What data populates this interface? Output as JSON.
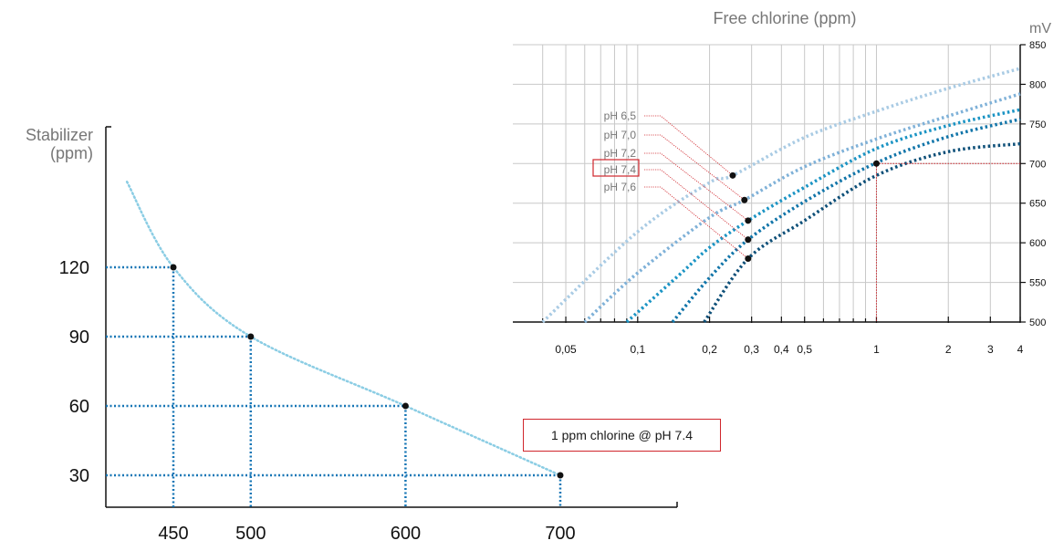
{
  "chart_data": [
    {
      "type": "line",
      "title": "Free chlorine (ppm)",
      "ylabel": "mV",
      "xscale": "log",
      "xlim": [
        0.03,
        4
      ],
      "ylim": [
        500,
        850
      ],
      "grid": true,
      "x_ticks": [
        {
          "value": 0.05,
          "label": "0,05"
        },
        {
          "value": 0.1,
          "label": "0,1"
        },
        {
          "value": 0.2,
          "label": "0,2"
        },
        {
          "value": 0.3,
          "label": "0,3"
        },
        {
          "value": 0.4,
          "label": "0,4"
        },
        {
          "value": 0.5,
          "label": "0,5"
        },
        {
          "value": 1,
          "label": "1"
        },
        {
          "value": 2,
          "label": "2"
        },
        {
          "value": 3,
          "label": "3"
        },
        {
          "value": 4,
          "label": "4"
        }
      ],
      "y_ticks": [
        500,
        550,
        600,
        650,
        700,
        750,
        800,
        850
      ],
      "series": [
        {
          "name": "pH 6,5",
          "color": "#a9cbe4",
          "highlight": false,
          "points": [
            [
              0.04,
              500
            ],
            [
              0.1,
              614
            ],
            [
              0.2,
              676
            ],
            [
              0.25,
              685
            ],
            [
              0.5,
              733
            ],
            [
              1,
              766
            ],
            [
              2,
              795
            ],
            [
              4,
              820
            ]
          ],
          "marker": [
            0.25,
            685
          ]
        },
        {
          "name": "pH 7,0",
          "color": "#7fb1d8",
          "highlight": false,
          "points": [
            [
              0.06,
              500
            ],
            [
              0.1,
              562
            ],
            [
              0.2,
              632
            ],
            [
              0.28,
              654
            ],
            [
              0.5,
              696
            ],
            [
              1,
              731
            ],
            [
              2,
              760
            ],
            [
              4,
              788
            ]
          ],
          "marker": [
            0.28,
            654
          ]
        },
        {
          "name": "pH 7,2",
          "color": "#1b94c4",
          "highlight": false,
          "points": [
            [
              0.09,
              500
            ],
            [
              0.15,
              560
            ],
            [
              0.2,
              594
            ],
            [
              0.29,
              628
            ],
            [
              0.5,
              670
            ],
            [
              1,
              719
            ],
            [
              2,
              748
            ],
            [
              4,
              768
            ]
          ],
          "marker": [
            0.29,
            628
          ]
        },
        {
          "name": "pH 7,4",
          "color": "#1175a9",
          "highlight": true,
          "points": [
            [
              0.14,
              500
            ],
            [
              0.2,
              556
            ],
            [
              0.29,
              604
            ],
            [
              0.5,
              652
            ],
            [
              1,
              701
            ],
            [
              2,
              734
            ],
            [
              4,
              756
            ]
          ],
          "marker": [
            0.29,
            604
          ]
        },
        {
          "name": "pH 7,6",
          "color": "#0d4f78",
          "highlight": false,
          "points": [
            [
              0.19,
              500
            ],
            [
              0.29,
              580
            ],
            [
              0.5,
              628
            ],
            [
              1,
              685
            ],
            [
              2,
              715
            ],
            [
              4,
              725
            ]
          ],
          "marker": [
            0.29,
            580
          ]
        }
      ],
      "reference": {
        "x": 1,
        "y": 700,
        "color": "#d0262c"
      }
    },
    {
      "type": "line",
      "title": "",
      "ylabel": "Stabilizer (ppm)",
      "xlabel": "",
      "xlim": [
        380,
        750
      ],
      "ylim": [
        0,
        140
      ],
      "y_ticks": [
        30,
        60,
        90,
        120
      ],
      "x_ticks": [
        450,
        500,
        600,
        700
      ],
      "curve": [
        [
          420,
          157
        ],
        [
          450,
          120
        ],
        [
          500,
          90
        ],
        [
          600,
          60
        ],
        [
          700,
          30
        ]
      ],
      "points": [
        [
          450,
          120
        ],
        [
          500,
          90
        ],
        [
          600,
          60
        ],
        [
          700,
          30
        ]
      ],
      "color": "#8bcde4",
      "guide_color": "#1575b5"
    }
  ],
  "annotation": "1 ppm chlorine @ pH 7.4"
}
